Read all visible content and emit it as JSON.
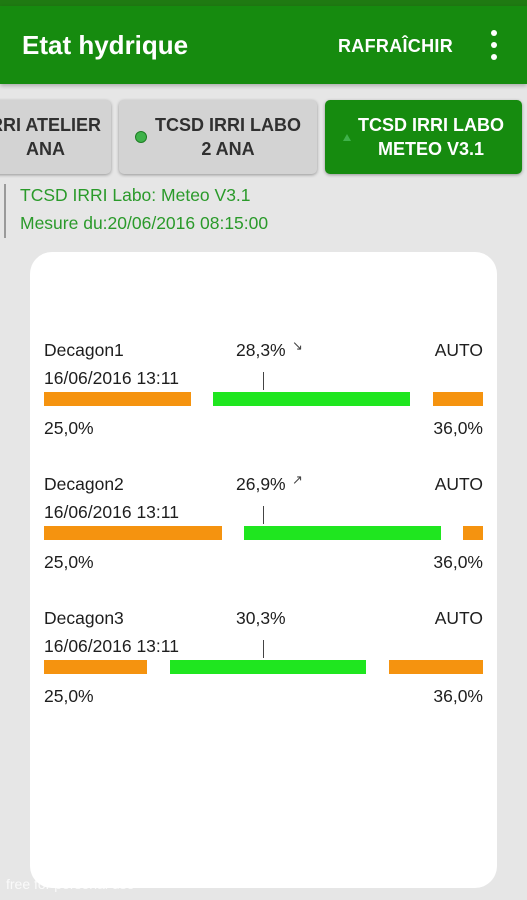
{
  "appbar": {
    "title": "Etat hydrique",
    "refresh_label": "RAFRAÎCHIR",
    "menu_icon": "overflow-vertical-icon",
    "color": "#168b0f"
  },
  "tabs": [
    {
      "label": "RRI ATELIER\nANA",
      "active": false
    },
    {
      "label": "TCSD IRRI LABO\n2 ANA",
      "active": false,
      "indicator_icon": "status-dot-icon"
    },
    {
      "label": "TCSD IRRI LABO\nMETEO V3.1",
      "active": true,
      "indicator_icon": "status-triangle-icon"
    }
  ],
  "station": {
    "name": "TCSD IRRI Labo: Meteo V3.1",
    "measure_date": "Mesure du:20/06/2016 08:15:00"
  },
  "sensors": [
    {
      "name": "Decagon1",
      "value": "28,3%",
      "trend": "↘",
      "trend_icon": "trend-down-icon",
      "mode": "AUTO",
      "date": "16/06/2016 13:11",
      "min": "25,0%",
      "max": "36,0%"
    },
    {
      "name": "Decagon2",
      "value": "26,9%",
      "trend": "↗",
      "trend_icon": "trend-up-icon",
      "mode": "AUTO",
      "date": "16/06/2016 13:11",
      "min": "25,0%",
      "max": "36,0%"
    },
    {
      "name": "Decagon3",
      "value": "30,3%",
      "trend": "",
      "mode": "AUTO",
      "date": "16/06/2016 13:11",
      "min": "25,0%",
      "max": "36,0%"
    }
  ],
  "colors": {
    "low_zone": "#f5930f",
    "ok_zone": "#1fe61f",
    "info_text": "#2a9a2a"
  },
  "footer": "free for personal use"
}
